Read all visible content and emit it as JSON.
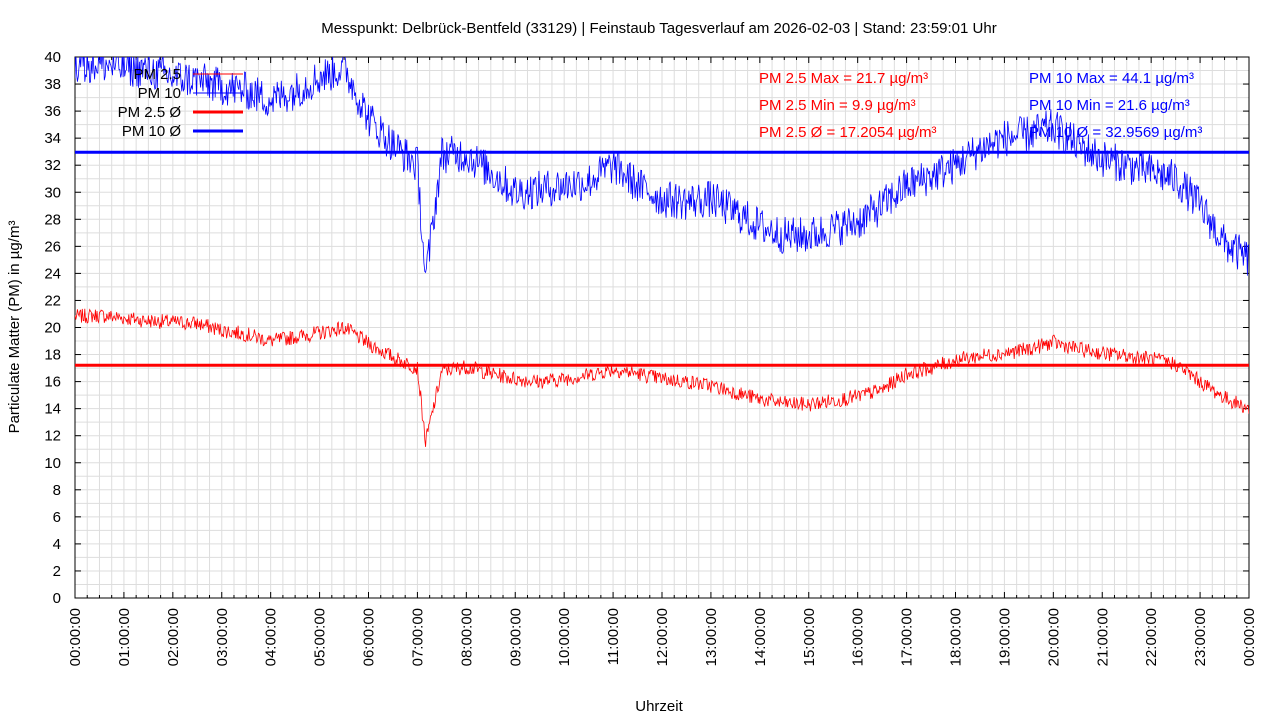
{
  "chart_data": {
    "type": "line",
    "title": "Messpunkt: Delbrück-Bentfeld (33129) | Feinstaub Tagesverlauf am 2026-02-03 | Stand: 23:59:01 Uhr",
    "xlabel": "Uhrzeit",
    "ylabel": "Particulate Matter (PM) in µg/m³",
    "ylim": [
      0,
      40
    ],
    "xlim": [
      "00:00:00",
      "24:00:00"
    ],
    "grid": true,
    "legend_position": "top-left",
    "x_ticks": [
      "00:00:00",
      "01:00:00",
      "02:00:00",
      "03:00:00",
      "04:00:00",
      "05:00:00",
      "06:00:00",
      "07:00:00",
      "08:00:00",
      "09:00:00",
      "10:00:00",
      "11:00:00",
      "12:00:00",
      "13:00:00",
      "14:00:00",
      "15:00:00",
      "16:00:00",
      "17:00:00",
      "18:00:00",
      "19:00:00",
      "20:00:00",
      "21:00:00",
      "22:00:00",
      "23:00:00",
      "00:00:00"
    ],
    "y_ticks": [
      "0",
      "2",
      "4",
      "6",
      "8",
      "10",
      "12",
      "14",
      "16",
      "18",
      "20",
      "22",
      "24",
      "26",
      "28",
      "30",
      "32",
      "34",
      "36",
      "38",
      "40"
    ],
    "x": [
      "00:00",
      "00:30",
      "01:00",
      "01:30",
      "02:00",
      "02:30",
      "03:00",
      "03:30",
      "04:00",
      "04:30",
      "05:00",
      "05:30",
      "06:00",
      "06:30",
      "07:00",
      "07:10",
      "07:30",
      "08:00",
      "08:30",
      "09:00",
      "09:30",
      "10:00",
      "10:30",
      "11:00",
      "11:30",
      "12:00",
      "12:30",
      "13:00",
      "13:30",
      "14:00",
      "14:30",
      "15:00",
      "15:30",
      "16:00",
      "16:30",
      "17:00",
      "17:30",
      "18:00",
      "18:30",
      "19:00",
      "19:30",
      "20:00",
      "20:30",
      "21:00",
      "21:30",
      "22:00",
      "22:30",
      "23:00",
      "23:30",
      "24:00"
    ],
    "series": [
      {
        "name": "PM 2.5",
        "color": "#ff0000",
        "values": [
          20.8,
          20.9,
          20.7,
          20.5,
          20.4,
          20.3,
          19.8,
          19.5,
          19.0,
          19.3,
          19.6,
          20.0,
          18.8,
          17.8,
          17.0,
          11.5,
          16.8,
          17.1,
          16.6,
          16.2,
          16.0,
          16.2,
          16.5,
          16.9,
          16.6,
          16.2,
          16.0,
          15.7,
          15.2,
          14.7,
          14.4,
          14.3,
          14.6,
          14.9,
          15.4,
          16.6,
          17.0,
          17.6,
          17.9,
          18.1,
          18.4,
          18.9,
          18.4,
          18.1,
          17.9,
          17.7,
          17.3,
          16.0,
          14.8,
          14.0
        ]
      },
      {
        "name": "PM 10",
        "color": "#0000ff",
        "values": [
          39.5,
          39.5,
          39.2,
          39.0,
          38.5,
          38.3,
          37.8,
          37.5,
          36.8,
          37.5,
          38.5,
          39.2,
          35.5,
          33.5,
          32.0,
          23.5,
          32.8,
          32.8,
          31.5,
          30.0,
          30.2,
          30.5,
          30.8,
          32.0,
          30.5,
          29.5,
          29.3,
          29.5,
          28.5,
          27.5,
          26.8,
          26.8,
          27.3,
          27.8,
          29.0,
          30.5,
          31.2,
          32.0,
          33.2,
          34.0,
          34.3,
          34.8,
          33.5,
          32.5,
          32.0,
          31.5,
          31.0,
          29.0,
          26.2,
          25.0
        ]
      }
    ],
    "averages": [
      {
        "name": "PM 2.5 Ø",
        "value": 17.2054,
        "color": "#ff0000"
      },
      {
        "name": "PM 10 Ø",
        "value": 32.9569,
        "color": "#0000ff"
      }
    ],
    "legend": [
      {
        "label": "PM 2.5",
        "color": "#ff0000",
        "style": "thin"
      },
      {
        "label": "PM 10",
        "color": "#0000ff",
        "style": "thin"
      },
      {
        "label": "PM 2.5 Ø",
        "color": "#ff0000",
        "style": "thick"
      },
      {
        "label": "PM 10 Ø",
        "color": "#0000ff",
        "style": "thick"
      }
    ],
    "annotations": {
      "pm25": {
        "color": "#ff0000",
        "lines": [
          "PM 2.5 Max = 21.7 µg/m³",
          "PM 2.5 Min = 9.9 µg/m³",
          "PM 2.5 Ø = 17.2054 µg/m³"
        ]
      },
      "pm10": {
        "color": "#0000ff",
        "lines": [
          "PM 10 Max = 44.1 µg/m³",
          "PM 10 Min = 21.6 µg/m³",
          "PM 10 Ø = 32.9569 µg/m³"
        ]
      }
    }
  }
}
